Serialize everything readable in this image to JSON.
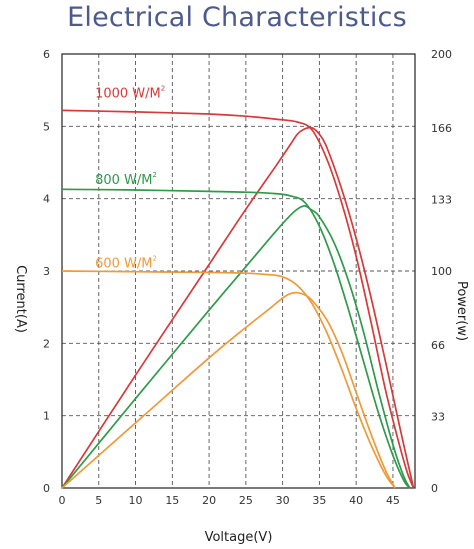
{
  "chart_data": {
    "type": "line",
    "title": "Electrical Characteristics",
    "xlabel": "Voltage(V)",
    "ylabel_left": "Current(A)",
    "ylabel_right": "Power(w)",
    "xlim": [
      0,
      48
    ],
    "ylim_left": [
      0,
      6
    ],
    "ylim_right": [
      0,
      200
    ],
    "x_ticks": [
      "0",
      "5",
      "10",
      "15",
      "20",
      "25",
      "30",
      "35",
      "40",
      "45"
    ],
    "y_ticks_left": [
      "0",
      "1",
      "2",
      "3",
      "4",
      "5",
      "6"
    ],
    "y_ticks_right": [
      "0",
      "33",
      "66",
      "100",
      "133",
      "166",
      "200"
    ],
    "grid": true,
    "series_labels": [
      {
        "text": "1000 W/M",
        "sup": "2",
        "color": "#d63a3a",
        "at_x": 4.5,
        "at_y": 5.4
      },
      {
        "text": "800 W/M",
        "sup": "2",
        "color": "#2e9a4a",
        "at_x": 4.5,
        "at_y": 4.2
      },
      {
        "text": "600 W/M",
        "sup": "2",
        "color": "#ef9a3a",
        "at_x": 4.5,
        "at_y": 3.05
      }
    ],
    "series": [
      {
        "kind": "current",
        "color": "#d63a3a",
        "points": [
          [
            0,
            5.22
          ],
          [
            10,
            5.2
          ],
          [
            20,
            5.17
          ],
          [
            25,
            5.14
          ],
          [
            29,
            5.1
          ],
          [
            32,
            5.06
          ],
          [
            34,
            4.95
          ],
          [
            36,
            4.55
          ],
          [
            38,
            3.95
          ],
          [
            40,
            3.2
          ],
          [
            42,
            2.3
          ],
          [
            44,
            1.35
          ],
          [
            46,
            0.55
          ],
          [
            47,
            0.2
          ],
          [
            47.8,
            0
          ]
        ]
      },
      {
        "kind": "power",
        "color": "#d63a3a",
        "points": [
          [
            0,
            0
          ],
          [
            10,
            52
          ],
          [
            20,
            103
          ],
          [
            25,
            128.5
          ],
          [
            29,
            148
          ],
          [
            31,
            158
          ],
          [
            32,
            163
          ],
          [
            33,
            165.5
          ],
          [
            34,
            166
          ],
          [
            35,
            163
          ],
          [
            36,
            157
          ],
          [
            38,
            138
          ],
          [
            40,
            115
          ],
          [
            42,
            88
          ],
          [
            44,
            58
          ],
          [
            46,
            27
          ],
          [
            47.8,
            0
          ]
        ]
      },
      {
        "kind": "current",
        "color": "#2e9a4a",
        "points": [
          [
            0,
            4.13
          ],
          [
            10,
            4.12
          ],
          [
            20,
            4.1
          ],
          [
            25,
            4.09
          ],
          [
            29,
            4.07
          ],
          [
            31,
            4.04
          ],
          [
            33,
            3.95
          ],
          [
            35,
            3.62
          ],
          [
            37,
            3.1
          ],
          [
            39,
            2.45
          ],
          [
            41,
            1.75
          ],
          [
            43,
            1.05
          ],
          [
            45,
            0.45
          ],
          [
            46.5,
            0.1
          ],
          [
            47.3,
            0
          ]
        ]
      },
      {
        "kind": "power",
        "color": "#2e9a4a",
        "points": [
          [
            0,
            0
          ],
          [
            10,
            41.2
          ],
          [
            20,
            82
          ],
          [
            25,
            102
          ],
          [
            29,
            118
          ],
          [
            31,
            125.5
          ],
          [
            32,
            128.5
          ],
          [
            33,
            130
          ],
          [
            34,
            128
          ],
          [
            35,
            125
          ],
          [
            37,
            113
          ],
          [
            39,
            95
          ],
          [
            41,
            72
          ],
          [
            43,
            45
          ],
          [
            45,
            20
          ],
          [
            46.5,
            5
          ],
          [
            47.3,
            0
          ]
        ]
      },
      {
        "kind": "current",
        "color": "#ef9a3a",
        "points": [
          [
            0,
            3.0
          ],
          [
            10,
            2.99
          ],
          [
            20,
            2.98
          ],
          [
            25,
            2.97
          ],
          [
            28,
            2.95
          ],
          [
            30,
            2.92
          ],
          [
            32,
            2.8
          ],
          [
            34,
            2.55
          ],
          [
            36,
            2.15
          ],
          [
            38,
            1.65
          ],
          [
            40,
            1.1
          ],
          [
            42,
            0.6
          ],
          [
            44,
            0.18
          ],
          [
            45.3,
            0
          ]
        ]
      },
      {
        "kind": "power",
        "color": "#ef9a3a",
        "points": [
          [
            0,
            0
          ],
          [
            10,
            30
          ],
          [
            20,
            60
          ],
          [
            25,
            74
          ],
          [
            28,
            82
          ],
          [
            30,
            87.5
          ],
          [
            31,
            89.5
          ],
          [
            32,
            90
          ],
          [
            33,
            89
          ],
          [
            34,
            86.5
          ],
          [
            36,
            77.5
          ],
          [
            38,
            63
          ],
          [
            40,
            44
          ],
          [
            42,
            25
          ],
          [
            44,
            8
          ],
          [
            45.3,
            0
          ]
        ]
      }
    ]
  }
}
